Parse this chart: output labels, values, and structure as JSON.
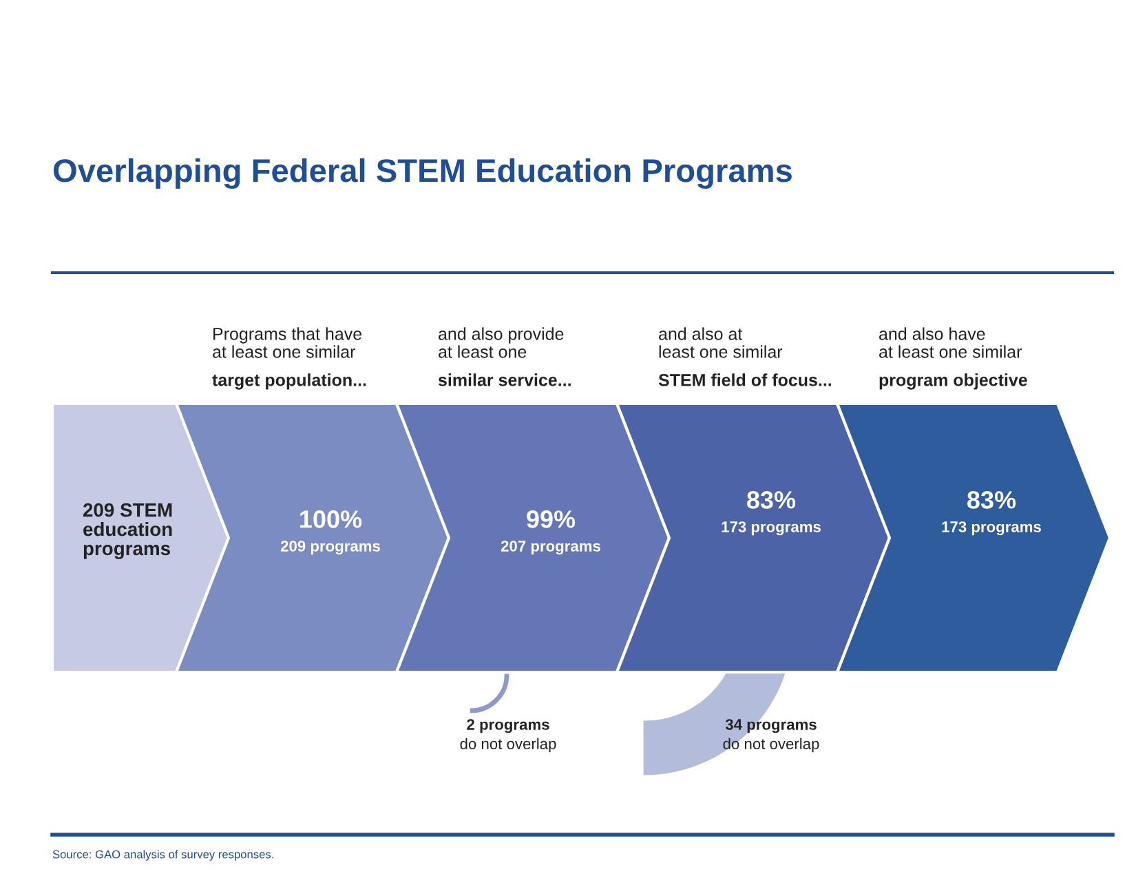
{
  "chart_data": {
    "type": "other",
    "title": "Overlapping Federal STEM Education Programs",
    "categories": [
      null,
      "Programs that have\nat least one similar\ntarget population...",
      "and also provide\nat least one\nsimilar service...",
      "and also at\nleast one similar\nSTEM field of focus...",
      "and also have\nat least one similar\nprogram objective"
    ],
    "values": [
      null,
      209,
      207,
      173,
      173
    ],
    "value_labels": [
      "209 STEM\neducation\nprograms",
      "100%\n209 programs",
      "99%\n207 programs",
      "83%\n173 programs",
      "83%\n173 programs"
    ],
    "colors": [
      "#c6cae4",
      "#7b8cc3",
      "#6476b5",
      "#4c63a7",
      "#2f5c9d"
    ],
    "annotations": [
      "2 programs\ndo not overlap",
      "34 programs\ndo not overlap",
      "Source: GAO analysis of survey responses."
    ]
  }
}
